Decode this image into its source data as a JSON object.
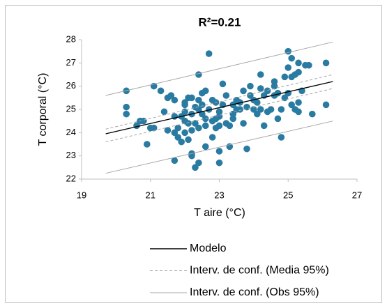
{
  "chart_data": {
    "type": "scatter",
    "title": "R²=0.21",
    "xlabel": "T aire (°C)",
    "ylabel": "T corporal (°C)",
    "xlim": [
      19,
      27
    ],
    "xticks": [
      19,
      21,
      23,
      25,
      27
    ],
    "ylim": [
      22,
      28
    ],
    "yticks": [
      22,
      23,
      24,
      25,
      26,
      27,
      28
    ],
    "grid": false,
    "series": [
      {
        "type": "scatter",
        "color": "#2a7ba1",
        "x": [
          20.3,
          20.3,
          20.3,
          20.6,
          20.7,
          20.8,
          20.9,
          21,
          21.1,
          21.1,
          21.3,
          21.4,
          21.5,
          21.6,
          21.7,
          21.7,
          21.7,
          21.8,
          21.7,
          21.9,
          21.9,
          22,
          22,
          22,
          22,
          22,
          22.1,
          22.1,
          22.1,
          22.2,
          22.2,
          22.2,
          22.2,
          22.2,
          22.3,
          22.3,
          22.4,
          22.4,
          22.4,
          22.4,
          22.4,
          22.5,
          22.5,
          22.5,
          22.6,
          22.6,
          22.6,
          22.6,
          22.7,
          22.7,
          22.8,
          22.8,
          22.8,
          22.9,
          22.9,
          23,
          23,
          23,
          23,
          23,
          23.1,
          23.1,
          23.2,
          23.2,
          23.3,
          23.3,
          23.4,
          23.4,
          23.5,
          23.5,
          23.6,
          23.7,
          23.7,
          23.8,
          23.8,
          23.9,
          23.9,
          24,
          24,
          24.1,
          24.1,
          24.2,
          24.2,
          24.3,
          24.3,
          24.4,
          24.4,
          24.5,
          24.6,
          24.6,
          24.7,
          24.7,
          24.8,
          24.8,
          24.9,
          24.9,
          25,
          25,
          25,
          25.1,
          25.1,
          25.1,
          25.2,
          25.2,
          25.3,
          25.3,
          25.3,
          25.4,
          25.5,
          25.6,
          25.7,
          26.1,
          26.1,
          25.3,
          24.6,
          23.6,
          23.4,
          22.9,
          21.5,
          21.8,
          22.3,
          24.2
        ],
        "values": [
          25.8,
          25.1,
          24.8,
          24.3,
          24.5,
          24.5,
          23.5,
          24.2,
          24.2,
          26,
          25.8,
          24.9,
          25.5,
          25.6,
          25.4,
          24.7,
          24,
          23.8,
          22.8,
          24.7,
          23.6,
          25.3,
          25.2,
          24.9,
          24.5,
          24,
          25.5,
          24.4,
          23.7,
          25.5,
          24.8,
          24.1,
          23.1,
          23,
          22.5,
          24.4,
          26.5,
          25.4,
          25,
          24.2,
          22.7,
          25.7,
          25.2,
          24.8,
          24.6,
          24.3,
          23.4,
          25.8,
          27.4,
          25,
          25.4,
          24.5,
          23.8,
          24.2,
          25.3,
          24.3,
          24.7,
          24.9,
          22.7,
          23.2,
          26.1,
          25.2,
          25.6,
          24.4,
          24.3,
          23.4,
          24.8,
          25.2,
          25.4,
          25,
          25.3,
          25.8,
          24.4,
          23.3,
          25.1,
          26,
          25.6,
          25.4,
          25,
          25.3,
          24.8,
          26.5,
          25.9,
          25.6,
          24.3,
          25.8,
          24.9,
          25,
          26.2,
          25.6,
          25.7,
          24.6,
          25,
          23.8,
          26.4,
          25.5,
          25.7,
          26.8,
          27.5,
          27.2,
          26.4,
          25.2,
          25,
          26.5,
          27,
          26.6,
          24.9,
          25.8,
          26.9,
          26.9,
          24.8,
          27,
          25.2,
          25.3,
          26,
          25,
          24.6,
          24.6,
          24.1,
          24.2,
          25.1,
          25
        ]
      },
      {
        "type": "line",
        "name": "Modelo",
        "color": "#000000",
        "x": [
          19.7,
          26.3
        ],
        "values": [
          23.95,
          26.2
        ]
      },
      {
        "type": "band",
        "name": "Interv. de conf. (Media 95%)",
        "color": "#a6a6a6",
        "dash": true,
        "x": [
          19.7,
          26.3
        ],
        "values": [
          23.6,
          25.9
        ],
        "upper": [
          24.15,
          26.5
        ]
      },
      {
        "type": "band",
        "name": "Interv. de conf. (Obs 95%)",
        "color": "#a6a6a6",
        "x": [
          19.7,
          26.3
        ],
        "values": [
          22.25,
          24.5
        ],
        "upper": [
          25.6,
          27.9
        ]
      }
    ]
  }
}
